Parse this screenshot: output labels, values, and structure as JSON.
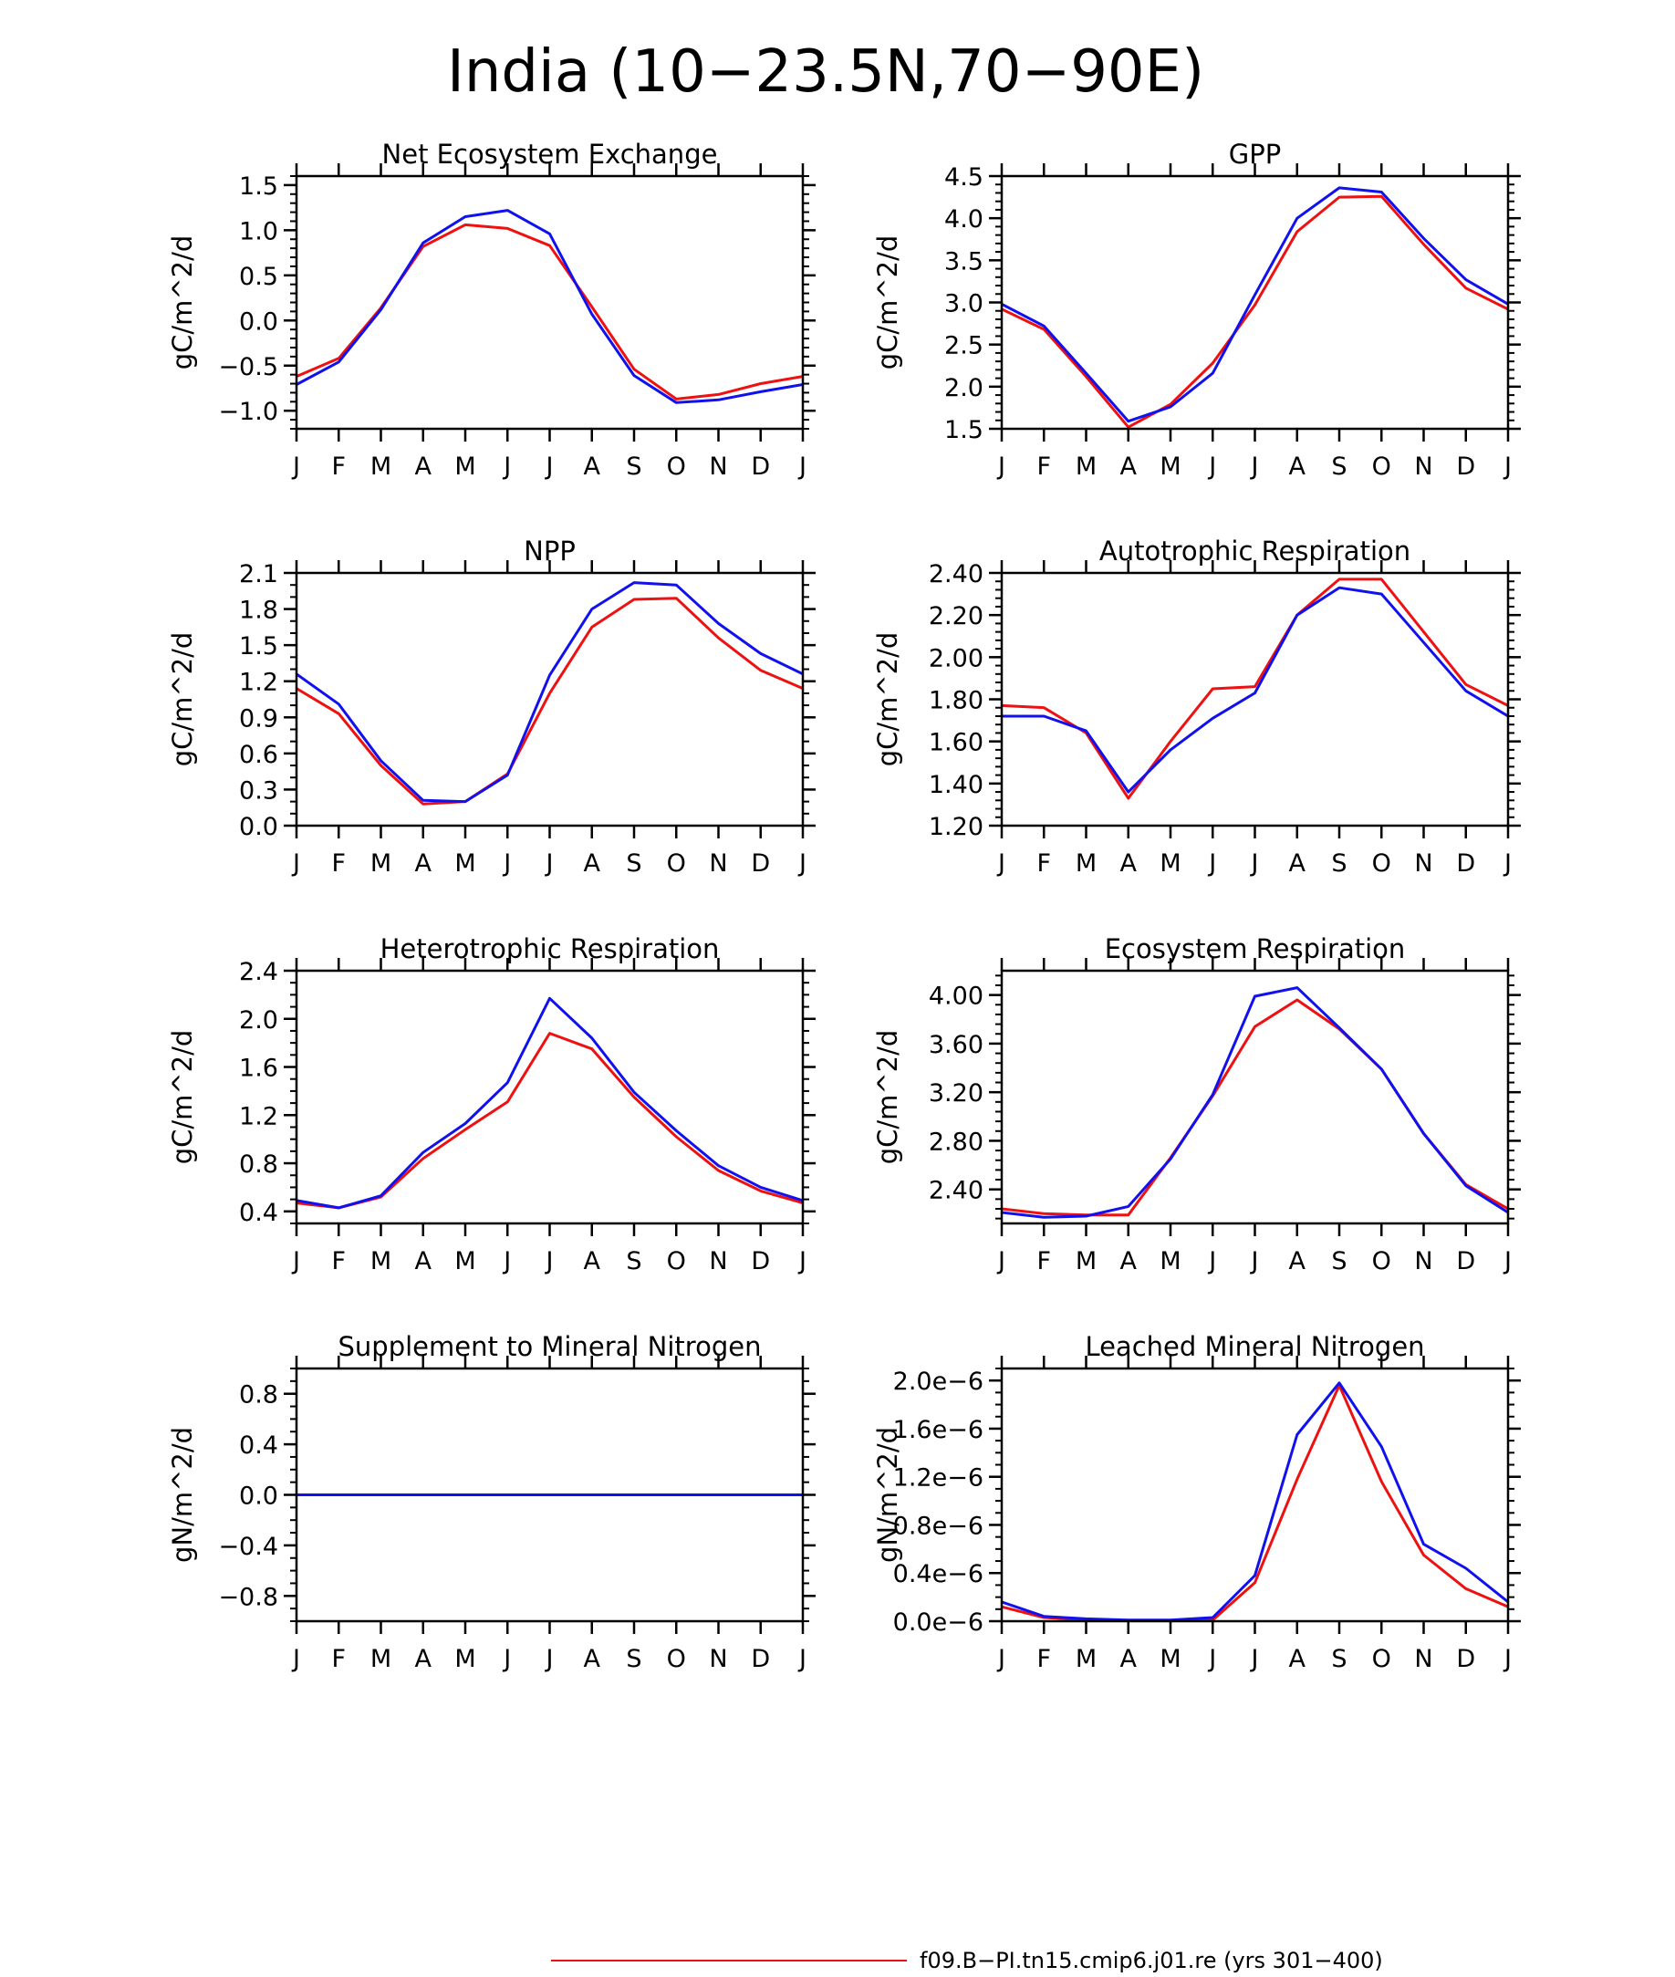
{
  "figure": {
    "title": "India (10−23.5N,70−90E)",
    "months": [
      "J",
      "F",
      "M",
      "A",
      "M",
      "J",
      "J",
      "A",
      "S",
      "O",
      "N",
      "D",
      "J"
    ]
  },
  "colors": {
    "case1": "#ee1111",
    "case2": "#1111ee",
    "axis": "#000000"
  },
  "legend": [
    {
      "label": "f09.B−PI.tn15.cmip6.j01.re (yrs 301−400)",
      "color": "#ee1111"
    }
  ],
  "chart_data": [
    {
      "type": "line",
      "title": "Net Ecosystem Exchange",
      "ylabel": "gC/m^2/d",
      "ylim": [
        -1.2,
        1.6
      ],
      "yticks": [
        -1.0,
        -0.5,
        0.0,
        0.5,
        1.0,
        1.5
      ],
      "yticklabels": [
        "−1.0",
        "−0.5",
        "0.0",
        "0.5",
        "1.0",
        "1.5"
      ],
      "yminor": 0.1,
      "categories": [
        "J",
        "F",
        "M",
        "A",
        "M",
        "J",
        "J",
        "A",
        "S",
        "O",
        "N",
        "D",
        "J"
      ],
      "series": [
        {
          "color": "#ee1111",
          "values": [
            -0.62,
            -0.42,
            0.14,
            0.82,
            1.06,
            1.02,
            0.83,
            0.15,
            -0.54,
            -0.87,
            -0.82,
            -0.7,
            -0.62
          ]
        },
        {
          "color": "#1111ee",
          "values": [
            -0.71,
            -0.46,
            0.12,
            0.86,
            1.15,
            1.22,
            0.96,
            0.07,
            -0.61,
            -0.91,
            -0.88,
            -0.79,
            -0.71
          ]
        }
      ]
    },
    {
      "type": "line",
      "title": "GPP",
      "ylabel": "gC/m^2/d",
      "ylim": [
        1.5,
        4.5
      ],
      "yticks": [
        1.5,
        2.0,
        2.5,
        3.0,
        3.5,
        4.0,
        4.5
      ],
      "yticklabels": [
        "1.5",
        "2.0",
        "2.5",
        "3.0",
        "3.5",
        "4.0",
        "4.5"
      ],
      "yminor": 0.1,
      "categories": [
        "J",
        "F",
        "M",
        "A",
        "M",
        "J",
        "J",
        "A",
        "S",
        "O",
        "N",
        "D",
        "J"
      ],
      "series": [
        {
          "color": "#ee1111",
          "values": [
            2.92,
            2.68,
            2.12,
            1.52,
            1.79,
            2.28,
            2.97,
            3.84,
            4.25,
            4.26,
            3.69,
            3.17,
            2.92
          ]
        },
        {
          "color": "#1111ee",
          "values": [
            2.98,
            2.72,
            2.16,
            1.59,
            1.76,
            2.16,
            3.09,
            4.0,
            4.36,
            4.31,
            3.76,
            3.27,
            2.98
          ]
        }
      ]
    },
    {
      "type": "line",
      "title": "NPP",
      "ylabel": "gC/m^2/d",
      "ylim": [
        0.0,
        2.1
      ],
      "yticks": [
        0.0,
        0.3,
        0.6,
        0.9,
        1.2,
        1.5,
        1.8,
        2.1
      ],
      "yticklabels": [
        "0.0",
        "0.3",
        "0.6",
        "0.9",
        "1.2",
        "1.5",
        "1.8",
        "2.1"
      ],
      "yminor": 0.1,
      "categories": [
        "J",
        "F",
        "M",
        "A",
        "M",
        "J",
        "J",
        "A",
        "S",
        "O",
        "N",
        "D",
        "J"
      ],
      "series": [
        {
          "color": "#ee1111",
          "values": [
            1.14,
            0.93,
            0.5,
            0.18,
            0.2,
            0.43,
            1.1,
            1.65,
            1.88,
            1.89,
            1.56,
            1.29,
            1.14
          ]
        },
        {
          "color": "#1111ee",
          "values": [
            1.26,
            1.01,
            0.54,
            0.21,
            0.2,
            0.42,
            1.25,
            1.8,
            2.02,
            2.0,
            1.68,
            1.43,
            1.26
          ]
        }
      ]
    },
    {
      "type": "line",
      "title": "Autotrophic Respiration",
      "ylabel": "gC/m^2/d",
      "ylim": [
        1.2,
        2.4
      ],
      "yticks": [
        1.2,
        1.4,
        1.6,
        1.8,
        2.0,
        2.2,
        2.4
      ],
      "yticklabels": [
        "1.20",
        "1.40",
        "1.60",
        "1.80",
        "2.00",
        "2.20",
        "2.40"
      ],
      "yminor": 0.04,
      "categories": [
        "J",
        "F",
        "M",
        "A",
        "M",
        "J",
        "J",
        "A",
        "S",
        "O",
        "N",
        "D",
        "J"
      ],
      "series": [
        {
          "color": "#ee1111",
          "values": [
            1.77,
            1.76,
            1.64,
            1.33,
            1.6,
            1.85,
            1.86,
            2.2,
            2.37,
            2.37,
            2.12,
            1.87,
            1.77
          ]
        },
        {
          "color": "#1111ee",
          "values": [
            1.72,
            1.72,
            1.65,
            1.36,
            1.56,
            1.71,
            1.83,
            2.2,
            2.33,
            2.3,
            2.07,
            1.84,
            1.72
          ]
        }
      ]
    },
    {
      "type": "line",
      "title": "Heterotrophic Respiration",
      "ylabel": "gC/m^2/d",
      "ylim": [
        0.3,
        2.4
      ],
      "yticks": [
        0.4,
        0.8,
        1.2,
        1.6,
        2.0,
        2.4
      ],
      "yticklabels": [
        "0.4",
        "0.8",
        "1.2",
        "1.6",
        "2.0",
        "2.4"
      ],
      "yminor": 0.1,
      "categories": [
        "J",
        "F",
        "M",
        "A",
        "M",
        "J",
        "J",
        "A",
        "S",
        "O",
        "N",
        "D",
        "J"
      ],
      "series": [
        {
          "color": "#ee1111",
          "values": [
            0.47,
            0.43,
            0.52,
            0.84,
            1.08,
            1.31,
            1.88,
            1.75,
            1.35,
            1.02,
            0.74,
            0.57,
            0.47
          ]
        },
        {
          "color": "#1111ee",
          "values": [
            0.49,
            0.43,
            0.53,
            0.89,
            1.13,
            1.47,
            2.17,
            1.84,
            1.39,
            1.07,
            0.78,
            0.6,
            0.49
          ]
        }
      ]
    },
    {
      "type": "line",
      "title": "Ecosystem Respiration",
      "ylabel": "gC/m^2/d",
      "ylim": [
        2.12,
        4.2
      ],
      "yticks": [
        2.4,
        2.8,
        3.2,
        3.6,
        4.0
      ],
      "yticklabels": [
        "2.40",
        "2.80",
        "3.20",
        "3.60",
        "4.00"
      ],
      "yminor": 0.08,
      "categories": [
        "J",
        "F",
        "M",
        "A",
        "M",
        "J",
        "J",
        "A",
        "S",
        "O",
        "N",
        "D",
        "J"
      ],
      "series": [
        {
          "color": "#ee1111",
          "values": [
            2.24,
            2.2,
            2.19,
            2.19,
            2.66,
            3.17,
            3.74,
            3.96,
            3.72,
            3.39,
            2.86,
            2.44,
            2.24
          ]
        },
        {
          "color": "#1111ee",
          "values": [
            2.21,
            2.17,
            2.18,
            2.26,
            2.65,
            3.18,
            3.99,
            4.06,
            3.73,
            3.39,
            2.86,
            2.43,
            2.21
          ]
        }
      ]
    },
    {
      "type": "line",
      "title": "Supplement to Mineral Nitrogen",
      "ylabel": "gN/m^2/d",
      "ylim": [
        -1.0,
        1.0
      ],
      "yticks": [
        -0.8,
        -0.4,
        0.0,
        0.4,
        0.8
      ],
      "yticklabels": [
        "−0.8",
        "−0.4",
        "0.0",
        "0.4",
        "0.8"
      ],
      "yminor": 0.1,
      "categories": [
        "J",
        "F",
        "M",
        "A",
        "M",
        "J",
        "J",
        "A",
        "S",
        "O",
        "N",
        "D",
        "J"
      ],
      "series": [
        {
          "color": "#ee1111",
          "values": [
            0,
            0,
            0,
            0,
            0,
            0,
            0,
            0,
            0,
            0,
            0,
            0,
            0
          ]
        },
        {
          "color": "#1111ee",
          "values": [
            0,
            0,
            0,
            0,
            0,
            0,
            0,
            0,
            0,
            0,
            0,
            0,
            0
          ]
        }
      ]
    },
    {
      "type": "line",
      "title": "Leached Mineral Nitrogen",
      "ylabel": "gN/m^2/d",
      "ylim": [
        0.0,
        2.1
      ],
      "value_scale": "1e-6",
      "yticks": [
        0.0,
        0.4,
        0.8,
        1.2,
        1.6,
        2.0
      ],
      "yticklabels": [
        "0.0e−6",
        "0.4e−6",
        "0.8e−6",
        "1.2e−6",
        "1.6e−6",
        "2.0e−6"
      ],
      "yminor": 0.1,
      "categories": [
        "J",
        "F",
        "M",
        "A",
        "M",
        "J",
        "J",
        "A",
        "S",
        "O",
        "N",
        "D",
        "J"
      ],
      "series": [
        {
          "color": "#ee1111",
          "values": [
            0.12,
            0.03,
            0.01,
            0.0,
            0.0,
            0.01,
            0.32,
            1.18,
            1.96,
            1.16,
            0.55,
            0.27,
            0.12
          ]
        },
        {
          "color": "#1111ee",
          "values": [
            0.16,
            0.04,
            0.02,
            0.01,
            0.01,
            0.03,
            0.38,
            1.55,
            1.98,
            1.45,
            0.64,
            0.44,
            0.16
          ]
        }
      ]
    }
  ]
}
